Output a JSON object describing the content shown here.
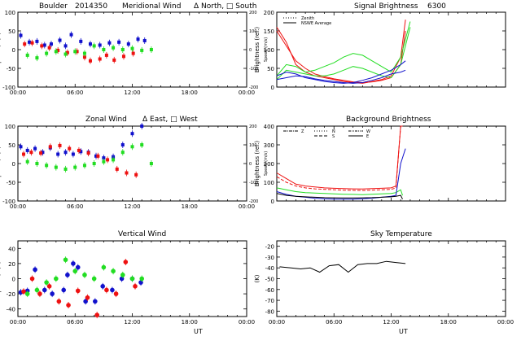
{
  "header": {
    "site": "Boulder",
    "date_code": "2014350",
    "wavelength": "6300"
  },
  "colors": {
    "red": "#ee1111",
    "green": "#22dd22",
    "blue": "#1111cc",
    "black": "#000000"
  },
  "chart_data": [
    {
      "id": "meridional",
      "type": "scatter",
      "title": "Meridional Wind",
      "legend_text": "Δ North, □ South",
      "ylabel": "Speed (m/s)",
      "right_ylabel": "Speed (m/s)",
      "xlabel": "",
      "xlim": [
        0,
        24
      ],
      "ylim": [
        -100,
        100
      ],
      "right_ylim": [
        -200,
        200
      ],
      "xticks": [
        "00:00",
        "06:00",
        "12:00",
        "18:00",
        "00:00"
      ],
      "yticks": [
        "-100",
        "-50",
        "0",
        "50",
        "100"
      ],
      "right_yticks": [
        "-200",
        "-100",
        "0",
        "100",
        "200"
      ],
      "series": [
        {
          "color": "blue",
          "marker": "square",
          "x": [
            0.3,
            1.2,
            2.0,
            2.8,
            3.5,
            4.4,
            5.0,
            5.6,
            6.6,
            7.6,
            8.6,
            9.6,
            10.6,
            11.6,
            12.6,
            13.3
          ],
          "y": [
            38,
            20,
            22,
            12,
            15,
            25,
            10,
            40,
            22,
            15,
            12,
            18,
            20,
            15,
            28,
            24
          ]
        },
        {
          "color": "red",
          "marker": "square",
          "x": [
            0.7,
            1.5,
            2.5,
            3.3,
            4.2,
            5.2,
            6.2,
            7.0,
            7.6,
            8.6,
            9.3,
            10.1,
            11.1,
            12.1
          ],
          "y": [
            15,
            18,
            10,
            5,
            -2,
            -8,
            -5,
            -20,
            -30,
            -25,
            -15,
            -28,
            -18,
            -10
          ]
        },
        {
          "color": "green",
          "marker": "square",
          "x": [
            1.0,
            2.0,
            3.0,
            4.0,
            5.0,
            6.0,
            7.0,
            8.0,
            9.0,
            10.0,
            11.0,
            12.0,
            13.0,
            14.0
          ],
          "y": [
            -15,
            -22,
            -10,
            -5,
            -12,
            -5,
            -10,
            10,
            0,
            5,
            0,
            3,
            -2,
            0
          ]
        }
      ]
    },
    {
      "id": "zonal",
      "type": "scatter",
      "title": "Zonal Wind",
      "legend_text": "Δ East, □ West",
      "ylabel": "Speed (m/s)",
      "right_ylabel": "Speed (m/s)",
      "xlabel": "",
      "xlim": [
        0,
        24
      ],
      "ylim": [
        -100,
        100
      ],
      "right_ylim": [
        -200,
        200
      ],
      "xticks": [
        "00:00",
        "06:00",
        "12:00",
        "18:00",
        "00:00"
      ],
      "yticks": [
        "-100",
        "-50",
        "0",
        "50",
        "100"
      ],
      "right_yticks": [
        "-200",
        "-100",
        "0",
        "100",
        "200"
      ],
      "series": [
        {
          "color": "blue",
          "marker": "square",
          "x": [
            0.3,
            1.0,
            1.8,
            2.6,
            3.4,
            4.2,
            5.0,
            5.8,
            6.6,
            7.4,
            8.2,
            9.0,
            10.0,
            11.0,
            12.0,
            13.0
          ],
          "y": [
            45,
            35,
            40,
            30,
            42,
            25,
            30,
            25,
            32,
            30,
            20,
            15,
            18,
            50,
            80,
            100
          ]
        },
        {
          "color": "red",
          "marker": "square",
          "x": [
            0.6,
            1.4,
            2.4,
            3.4,
            4.4,
            5.4,
            6.4,
            7.4,
            8.4,
            9.4,
            10.4,
            11.4,
            12.4
          ],
          "y": [
            25,
            30,
            28,
            45,
            48,
            40,
            35,
            28,
            20,
            10,
            -15,
            -25,
            -30
          ]
        },
        {
          "color": "green",
          "marker": "square",
          "x": [
            1.0,
            2.0,
            3.0,
            4.0,
            5.0,
            6.0,
            7.0,
            8.0,
            9.0,
            10.0,
            11.0,
            12.0,
            13.0,
            14.0
          ],
          "y": [
            5,
            0,
            -5,
            -10,
            -15,
            -10,
            -5,
            0,
            5,
            10,
            30,
            45,
            50,
            0
          ]
        }
      ]
    },
    {
      "id": "vertical",
      "type": "scatter",
      "title": "Vertical Wind",
      "legend_text": "",
      "ylabel": "Speed (m/s)",
      "xlabel": "UT",
      "xlim": [
        0,
        24
      ],
      "ylim": [
        -50,
        50
      ],
      "xticks": [
        "00:00",
        "06:00",
        "12:00",
        "18:00",
        "00:00"
      ],
      "yticks": [
        "-40",
        "-20",
        "0",
        "20",
        "40"
      ],
      "series": [
        {
          "color": "blue",
          "marker": "circle",
          "x": [
            0.3,
            1.0,
            1.8,
            2.8,
            3.6,
            4.8,
            5.2,
            5.8,
            6.3,
            7.1,
            8.1,
            8.9,
            9.9,
            10.9,
            12.0,
            12.9
          ],
          "y": [
            -18,
            -16,
            12,
            -15,
            -20,
            -15,
            5,
            20,
            15,
            -30,
            -30,
            -10,
            -15,
            0,
            0,
            -5
          ]
        },
        {
          "color": "red",
          "marker": "circle",
          "x": [
            0.6,
            1.5,
            2.3,
            3.3,
            4.3,
            5.3,
            6.3,
            7.3,
            8.3,
            9.3,
            10.3,
            11.3,
            12.3
          ],
          "y": [
            -17,
            0,
            -20,
            -10,
            -30,
            -35,
            -16,
            -25,
            -48,
            -15,
            -20,
            22,
            -10
          ]
        },
        {
          "color": "green",
          "marker": "circle",
          "x": [
            1.0,
            2.0,
            3.0,
            4.0,
            5.0,
            6.0,
            7.0,
            8.0,
            9.0,
            10.0,
            11.0,
            12.0,
            13.0
          ],
          "y": [
            -20,
            -15,
            -5,
            0,
            25,
            10,
            5,
            0,
            15,
            10,
            5,
            0,
            0
          ]
        }
      ]
    },
    {
      "id": "signal",
      "type": "line",
      "title": "Signal Brightness",
      "ylabel": "Brightness (rel.)",
      "xlabel": "",
      "ylim": [
        0,
        200
      ],
      "yticks": [
        "0",
        "50",
        "100",
        "150",
        "200"
      ],
      "legend": [
        "Zenith",
        "NSWE Average"
      ],
      "series": [
        {
          "color": "red",
          "style": "solid",
          "x": [
            0,
            1,
            2,
            3,
            4,
            5,
            6,
            7,
            8,
            9,
            10,
            11,
            12,
            13,
            13.5
          ],
          "y": [
            160,
            120,
            60,
            40,
            30,
            25,
            20,
            15,
            12,
            10,
            15,
            20,
            30,
            80,
            180
          ]
        },
        {
          "color": "red",
          "style": "solid",
          "x": [
            0,
            1,
            2,
            3,
            4,
            5,
            6,
            7,
            8,
            9,
            10,
            11,
            12,
            13,
            13.5
          ],
          "y": [
            150,
            110,
            70,
            50,
            35,
            28,
            22,
            18,
            14,
            12,
            14,
            18,
            25,
            60,
            150
          ]
        },
        {
          "color": "green",
          "style": "solid",
          "x": [
            0,
            1,
            2,
            3,
            4,
            5,
            6,
            7,
            8,
            9,
            10,
            11,
            12,
            13,
            14
          ],
          "y": [
            30,
            60,
            55,
            40,
            45,
            55,
            65,
            80,
            90,
            85,
            70,
            55,
            40,
            80,
            175
          ]
        },
        {
          "color": "green",
          "style": "solid",
          "x": [
            0,
            1,
            2,
            3,
            4,
            5,
            6,
            7,
            8,
            9,
            10,
            11,
            12,
            13,
            14
          ],
          "y": [
            20,
            45,
            40,
            35,
            30,
            30,
            35,
            45,
            55,
            50,
            40,
            30,
            25,
            60,
            160
          ]
        },
        {
          "color": "blue",
          "style": "solid",
          "x": [
            0,
            1,
            2,
            3,
            4,
            5,
            6,
            7,
            8,
            9,
            10,
            11,
            12,
            13,
            13.5
          ],
          "y": [
            30,
            40,
            35,
            25,
            20,
            15,
            12,
            10,
            12,
            18,
            25,
            35,
            45,
            60,
            70
          ]
        },
        {
          "color": "blue",
          "style": "solid",
          "x": [
            0,
            1,
            2,
            3,
            4,
            5,
            6,
            7,
            8,
            9,
            10,
            11,
            12,
            13,
            13.5
          ],
          "y": [
            20,
            25,
            30,
            28,
            22,
            18,
            15,
            12,
            10,
            12,
            18,
            25,
            35,
            40,
            45
          ]
        }
      ]
    },
    {
      "id": "background",
      "type": "line",
      "title": "Background Brightness",
      "ylabel": "Brightness (rel.)",
      "xlabel": "",
      "ylim": [
        0,
        400
      ],
      "yticks": [
        "0",
        "100",
        "200",
        "300",
        "400"
      ],
      "legend": [
        "Z",
        "N",
        "S",
        "W",
        "E"
      ],
      "series": [
        {
          "color": "red",
          "style": "solid",
          "x": [
            0,
            1,
            2,
            3,
            4,
            5,
            6,
            7,
            8,
            9,
            10,
            11,
            12,
            12.5,
            13,
            13.2
          ],
          "y": [
            150,
            120,
            90,
            80,
            75,
            70,
            68,
            66,
            65,
            64,
            66,
            68,
            70,
            80,
            400,
            400
          ]
        },
        {
          "color": "red",
          "style": "dashed",
          "x": [
            0,
            1,
            2,
            3,
            4,
            5,
            6,
            7,
            8,
            9,
            10,
            11,
            12,
            12.5,
            13,
            13.2
          ],
          "y": [
            130,
            100,
            80,
            70,
            65,
            62,
            60,
            58,
            57,
            56,
            58,
            60,
            62,
            70,
            400,
            400
          ]
        },
        {
          "color": "green",
          "style": "solid",
          "x": [
            0,
            1,
            2,
            3,
            4,
            5,
            6,
            7,
            8,
            9,
            10,
            11,
            12,
            12.5,
            13,
            13.2
          ],
          "y": [
            70,
            60,
            50,
            45,
            42,
            40,
            38,
            36,
            35,
            34,
            36,
            38,
            40,
            45,
            60,
            30
          ]
        },
        {
          "color": "blue",
          "style": "solid",
          "x": [
            0,
            1,
            2,
            3,
            4,
            5,
            6,
            7,
            8,
            9,
            10,
            11,
            12,
            12.5,
            13,
            13.5
          ],
          "y": [
            50,
            35,
            25,
            20,
            15,
            12,
            10,
            10,
            10,
            12,
            15,
            20,
            25,
            30,
            200,
            280
          ]
        },
        {
          "color": "black",
          "style": "solid",
          "x": [
            0,
            1,
            2,
            3,
            4,
            5,
            6,
            7,
            8,
            9,
            10,
            11,
            12,
            12.5,
            13,
            13.2
          ],
          "y": [
            40,
            30,
            25,
            22,
            20,
            18,
            17,
            16,
            16,
            17,
            18,
            20,
            22,
            25,
            30,
            10
          ]
        }
      ]
    },
    {
      "id": "skytemp",
      "type": "line",
      "title": "Sky Temperature",
      "ylabel": "(K)",
      "xlabel": "UT",
      "xlim": [
        0,
        24
      ],
      "ylim": [
        -85,
        -15
      ],
      "xticks": [
        "00:00",
        "06:00",
        "12:00",
        "18:00",
        "00:00"
      ],
      "yticks": [
        "-80",
        "-70",
        "-60",
        "-50",
        "-40",
        "-30",
        "-20"
      ],
      "series": [
        {
          "color": "black",
          "style": "solid",
          "x": [
            0.3,
            1.5,
            2.5,
            3.5,
            4.5,
            5.5,
            6.5,
            7.5,
            8.5,
            9.5,
            10.5,
            11.5,
            12.5,
            13.5
          ],
          "y": [
            -39,
            -40,
            -41,
            -40,
            -44,
            -38,
            -37,
            -44,
            -37,
            -36,
            -36,
            -34,
            -35,
            -36
          ]
        }
      ]
    }
  ]
}
